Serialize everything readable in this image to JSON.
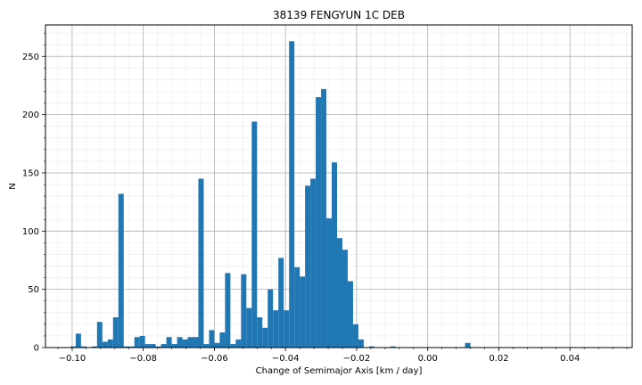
{
  "chart_data": {
    "type": "bar",
    "title": "38139 FENGYUN 1C DEB",
    "xlabel": "Change of Semimajor Axis [km / day]",
    "ylabel": "N",
    "xlim": [
      -0.1075,
      0.0575
    ],
    "ylim": [
      0,
      277
    ],
    "x_ticks": [
      -0.1,
      -0.08,
      -0.06,
      -0.04,
      -0.02,
      0.0,
      0.02,
      0.04
    ],
    "x_tick_labels": [
      "−0.10",
      "−0.08",
      "−0.06",
      "−0.04",
      "−0.02",
      "0.00",
      "0.02",
      "0.04"
    ],
    "y_ticks": [
      0,
      50,
      100,
      150,
      200,
      250
    ],
    "y_tick_labels": [
      "0",
      "50",
      "100",
      "150",
      "200",
      "250"
    ],
    "grid": true,
    "minor_grid": true,
    "bar_color": "#1f77b4",
    "bin_start": -0.1005,
    "bin_width": 0.0015,
    "counts": [
      1,
      12,
      1,
      0,
      1,
      22,
      5,
      7,
      26,
      132,
      1,
      1,
      9,
      10,
      3,
      3,
      1,
      3,
      9,
      3,
      9,
      7,
      9,
      9,
      145,
      3,
      15,
      4,
      13,
      64,
      3,
      7,
      63,
      34,
      194,
      26,
      17,
      50,
      32,
      77,
      32,
      263,
      69,
      61,
      139,
      145,
      215,
      222,
      111,
      159,
      94,
      84,
      57,
      20,
      7,
      0,
      1,
      0,
      0,
      0,
      1,
      0,
      0,
      0,
      0,
      0,
      0,
      0,
      0,
      0,
      0,
      0,
      0,
      0,
      4
    ]
  }
}
